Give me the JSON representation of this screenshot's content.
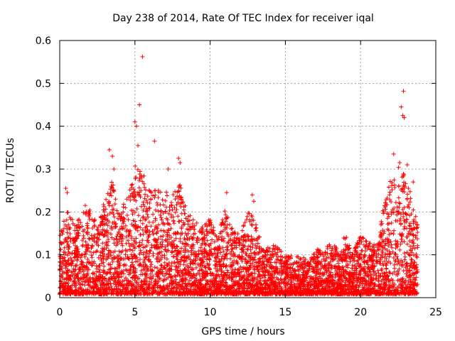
{
  "chart_data": {
    "type": "scatter",
    "title": "Day 238 of 2014, Rate Of TEC Index for receiver iqal",
    "xlabel": "GPS time / hours",
    "ylabel": "ROTI / TECUs",
    "xlim": [
      0,
      25
    ],
    "ylim": [
      0,
      0.6
    ],
    "x_ticks": [
      0,
      5,
      10,
      15,
      20,
      25
    ],
    "x_tick_labels": [
      "0",
      "5",
      "10",
      "15",
      "20",
      "25"
    ],
    "y_ticks": [
      0,
      0.1,
      0.2,
      0.3,
      0.4,
      0.5,
      0.6
    ],
    "y_tick_labels": [
      "0",
      "0.1",
      "0.2",
      "0.3",
      "0.4",
      "0.5",
      "0.6"
    ],
    "grid": true,
    "marker": "+",
    "color": "#ff0000",
    "series": [
      {
        "name": "ROTI",
        "envelope_hours": [
          0,
          0.5,
          1,
          1.5,
          2,
          2.5,
          3,
          3.5,
          4,
          4.5,
          5,
          5.5,
          6,
          6.5,
          7,
          7.5,
          8,
          8.5,
          9,
          9.5,
          10,
          10.5,
          11,
          11.5,
          12,
          12.5,
          13,
          13.5,
          14,
          14.5,
          15,
          15.5,
          16,
          16.5,
          17,
          17.5,
          18,
          18.5,
          19,
          19.5,
          20,
          20.5,
          21,
          21.5,
          22,
          22.5,
          23,
          23.5,
          23.8
        ],
        "typical_max_roti": [
          0.14,
          0.2,
          0.17,
          0.2,
          0.2,
          0.17,
          0.22,
          0.27,
          0.19,
          0.23,
          0.3,
          0.29,
          0.24,
          0.25,
          0.24,
          0.23,
          0.26,
          0.19,
          0.17,
          0.16,
          0.18,
          0.14,
          0.2,
          0.15,
          0.14,
          0.2,
          0.17,
          0.12,
          0.11,
          0.12,
          0.1,
          0.09,
          0.09,
          0.08,
          0.11,
          0.1,
          0.12,
          0.11,
          0.14,
          0.1,
          0.14,
          0.12,
          0.12,
          0.2,
          0.27,
          0.3,
          0.28,
          0.21,
          0.16
        ],
        "peaks": [
          {
            "x": 0.4,
            "y": 0.255
          },
          {
            "x": 0.5,
            "y": 0.245
          },
          {
            "x": 1.7,
            "y": 0.215
          },
          {
            "x": 3.3,
            "y": 0.345
          },
          {
            "x": 3.5,
            "y": 0.33
          },
          {
            "x": 3.6,
            "y": 0.3
          },
          {
            "x": 5.0,
            "y": 0.41
          },
          {
            "x": 5.1,
            "y": 0.4
          },
          {
            "x": 5.3,
            "y": 0.45
          },
          {
            "x": 5.5,
            "y": 0.562
          },
          {
            "x": 5.2,
            "y": 0.355
          },
          {
            "x": 6.3,
            "y": 0.365
          },
          {
            "x": 7.2,
            "y": 0.3
          },
          {
            "x": 7.9,
            "y": 0.325
          },
          {
            "x": 8.0,
            "y": 0.315
          },
          {
            "x": 11.1,
            "y": 0.245
          },
          {
            "x": 12.8,
            "y": 0.24
          },
          {
            "x": 12.9,
            "y": 0.225
          },
          {
            "x": 22.2,
            "y": 0.335
          },
          {
            "x": 22.6,
            "y": 0.315
          },
          {
            "x": 22.7,
            "y": 0.445
          },
          {
            "x": 22.8,
            "y": 0.425
          },
          {
            "x": 22.85,
            "y": 0.482
          },
          {
            "x": 22.9,
            "y": 0.42
          },
          {
            "x": 23.1,
            "y": 0.31
          },
          {
            "x": 23.5,
            "y": 0.27
          }
        ]
      }
    ]
  }
}
